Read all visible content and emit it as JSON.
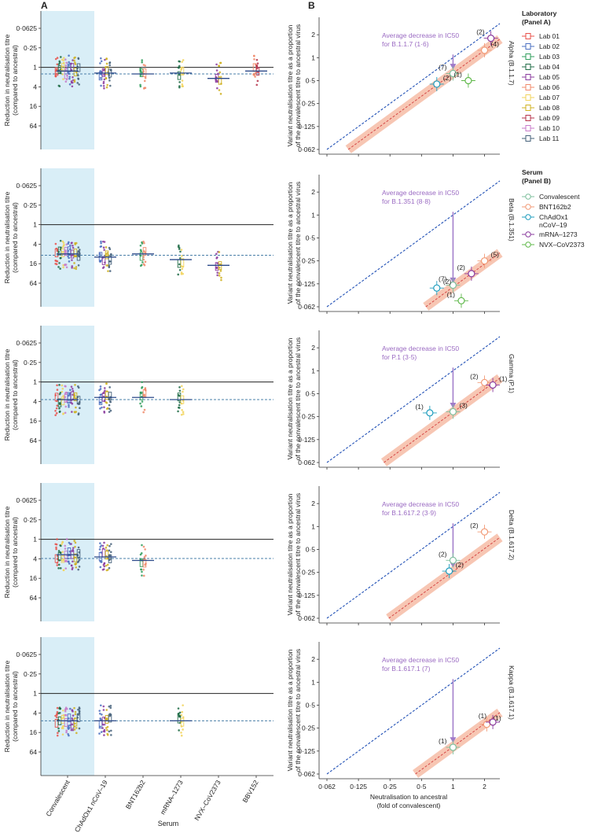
{
  "panel_labels": {
    "a": "A",
    "b": "B"
  },
  "x_axis_title_a": "Serum",
  "x_axis_title_b": "Neutralisation to ancestral\n(fold of convalescent)",
  "legend_lab": {
    "title": "Laboratory\n(Panel A)",
    "items": [
      {
        "label": "Lab 01",
        "color": "#e8504a"
      },
      {
        "label": "Lab 02",
        "color": "#4a6fc0"
      },
      {
        "label": "Lab 03",
        "color": "#2e9c5a"
      },
      {
        "label": "Lab 04",
        "color": "#1f6b45"
      },
      {
        "label": "Lab 05",
        "color": "#8a3a9e"
      },
      {
        "label": "Lab 06",
        "color": "#f08a6a"
      },
      {
        "label": "Lab 07",
        "color": "#f2d35a"
      },
      {
        "label": "Lab 08",
        "color": "#cfb01f"
      },
      {
        "label": "Lab 09",
        "color": "#b5324a"
      },
      {
        "label": "Lab 10",
        "color": "#c77ac9"
      },
      {
        "label": "Lab 11",
        "color": "#45607a"
      }
    ]
  },
  "legend_serum": {
    "title": "Serum\n(Panel B)",
    "items": [
      {
        "label": "Convalescent",
        "color": "#7dbf9c"
      },
      {
        "label": "BNT162b2",
        "color": "#f29a76"
      },
      {
        "label": "ChAdOx1\nnCoV–19",
        "color": "#1d9cbd"
      },
      {
        "label": "mRNA–1273",
        "color": "#8a3a9e"
      },
      {
        "label": "NVX–CoV2373",
        "color": "#5fb84a"
      }
    ]
  },
  "chart_data": [
    {
      "type": "strip",
      "panel": "A",
      "row": 1,
      "ylabel": "Reduction in neutralisation titre\n(compared to ancestral)",
      "y_scale": "log2-reversed",
      "yticks": [
        "0·0625",
        "0·25",
        "1",
        "4",
        "16",
        "64"
      ],
      "categories": [
        "Convalescent",
        "ChAdOx1 nCoV–19",
        "BNT162b2",
        "mRNA–1273",
        "NVX–CoV2373",
        "BBV152"
      ],
      "medians": [
        1.3,
        1.5,
        1.6,
        1.5,
        2.2,
        1.3
      ],
      "average_line": 1.6,
      "reference_line": 1
    },
    {
      "type": "strip",
      "panel": "A",
      "row": 2,
      "ylabel": "Reduction in neutralisation titre\n(compared to ancestral)",
      "y_scale": "log2-reversed",
      "yticks": [
        "0·0625",
        "0·25",
        "1",
        "4",
        "16",
        "64"
      ],
      "categories": [
        "Convalescent",
        "ChAdOx1 nCoV–19",
        "BNT162b2",
        "mRNA–1273",
        "NVX–CoV2373",
        "BBV152"
      ],
      "medians": [
        8,
        10,
        8,
        12,
        18,
        null
      ],
      "average_line": 8.8,
      "reference_line": 1
    },
    {
      "type": "strip",
      "panel": "A",
      "row": 3,
      "ylabel": "Reduction in neutralisation titre\n(compared to ancestral)",
      "y_scale": "log2-reversed",
      "yticks": [
        "0·0625",
        "0·25",
        "1",
        "4",
        "16",
        "64"
      ],
      "categories": [
        "Convalescent",
        "ChAdOx1 nCoV–19",
        "BNT162b2",
        "mRNA–1273",
        "NVX–CoV2373",
        "BBV152"
      ],
      "medians": [
        3.5,
        3,
        3,
        3.5,
        null,
        null
      ],
      "average_line": 3.5,
      "reference_line": 1
    },
    {
      "type": "strip",
      "panel": "A",
      "row": 4,
      "ylabel": "Reduction in neutralisation titre\n(compared to ancestral)",
      "y_scale": "log2-reversed",
      "yticks": [
        "0·0625",
        "0·25",
        "1",
        "4",
        "16",
        "64"
      ],
      "categories": [
        "Convalescent",
        "ChAdOx1 nCoV–19",
        "BNT162b2",
        "mRNA–1273",
        "NVX–CoV2373",
        "BBV152"
      ],
      "medians": [
        3,
        3.5,
        4.5,
        null,
        null,
        null
      ],
      "average_line": 3.9,
      "reference_line": 1
    },
    {
      "type": "strip",
      "panel": "A",
      "row": 5,
      "ylabel": "Reduction in neutralisation titre\n(compared to ancestral)",
      "y_scale": "log2-reversed",
      "yticks": [
        "0·0625",
        "0·25",
        "1",
        "4",
        "16",
        "64"
      ],
      "categories": [
        "Convalescent",
        "ChAdOx1 nCoV–19",
        "BNT162b2",
        "mRNA–1273",
        "NVX–CoV2373",
        "BBV152"
      ],
      "medians": [
        7,
        7,
        null,
        7,
        null,
        null
      ],
      "average_line": 7,
      "reference_line": 1
    },
    {
      "type": "scatter",
      "panel": "B",
      "variant": "Alpha (B.1.1.7)",
      "ylabel": "Variant neutralisation titre as a proportion\nof the convalescent titre to ancestral virus",
      "annotation": "Average decrease in IC50\nfor B.1.1.7 (1·6)",
      "average_decrease": 1.6,
      "x_scale": "log2",
      "y_scale": "log2",
      "xticks": [
        "0·062",
        "0·125",
        "0·25",
        "0·5",
        "1",
        "2"
      ],
      "yticks": [
        "2",
        "1",
        "0·5",
        "0·25",
        "0·125",
        "0·062"
      ],
      "points": [
        {
          "serum": "Convalescent",
          "x": 1.0,
          "y": 0.62,
          "n": "(7)"
        },
        {
          "serum": "ChAdOx1\nnCoV–19",
          "x": 0.7,
          "y": 0.45,
          "n": "(2)"
        },
        {
          "serum": "NVX–CoV2373",
          "x": 1.4,
          "y": 0.5,
          "n": "(1)"
        },
        {
          "serum": "BNT162b2",
          "x": 2.0,
          "y": 1.25,
          "n": "(4)"
        },
        {
          "serum": "mRNA–1273",
          "x": 2.3,
          "y": 1.8,
          "n": "(2)"
        }
      ]
    },
    {
      "type": "scatter",
      "panel": "B",
      "variant": "Beta (B.1.351)",
      "ylabel": "Variant neutralisation titre as a proportion\nof the convalescent titre to ancestral virus",
      "annotation": "Average decrease in IC50\nfor B.1.351 (8·8)",
      "average_decrease": 8.8,
      "x_scale": "log2",
      "y_scale": "log2",
      "xticks": [
        "0·062",
        "0·125",
        "0·25",
        "0·5",
        "1",
        "2"
      ],
      "yticks": [
        "2",
        "1",
        "0·5",
        "0·25",
        "0·125",
        "0·062"
      ],
      "points": [
        {
          "serum": "Convalescent",
          "x": 1.0,
          "y": 0.12,
          "n": "(7)"
        },
        {
          "serum": "ChAdOx1\nnCoV–19",
          "x": 0.7,
          "y": 0.11,
          "n": "(2)"
        },
        {
          "serum": "NVX–CoV2373",
          "x": 1.2,
          "y": 0.075,
          "n": "(1)"
        },
        {
          "serum": "BNT162b2",
          "x": 2.0,
          "y": 0.25,
          "n": "(5)"
        },
        {
          "serum": "mRNA–1273",
          "x": 1.5,
          "y": 0.17,
          "n": "(2)"
        }
      ]
    },
    {
      "type": "scatter",
      "panel": "B",
      "variant": "Gamma (P.1)",
      "ylabel": "Variant neutralisation titre as a proportion\nof the convalescent titre to ancestral virus",
      "annotation": "Average decrease in IC50\nfor P.1 (3·5)",
      "average_decrease": 3.5,
      "x_scale": "log2",
      "y_scale": "log2",
      "xticks": [
        "0·062",
        "0·125",
        "0·25",
        "0·5",
        "1",
        "2"
      ],
      "yticks": [
        "2",
        "1",
        "0·5",
        "0·25",
        "0·125",
        "0·062"
      ],
      "points": [
        {
          "serum": "ChAdOx1\nnCoV–19",
          "x": 0.6,
          "y": 0.28,
          "n": "(1)"
        },
        {
          "serum": "Convalescent",
          "x": 1.0,
          "y": 0.29,
          "n": "(3)"
        },
        {
          "serum": "BNT162b2",
          "x": 2.0,
          "y": 0.7,
          "n": "(2)"
        },
        {
          "serum": "mRNA–1273",
          "x": 2.4,
          "y": 0.65,
          "n": "(1)"
        }
      ]
    },
    {
      "type": "scatter",
      "panel": "B",
      "variant": "Delta (B.1.617.2)",
      "ylabel": "Variant neutralisation titre as a proportion\nof the convalescent titre to ancestral virus",
      "annotation": "Average decrease in IC50\nfor B.1.617.2 (3·9)",
      "average_decrease": 3.9,
      "x_scale": "log2",
      "y_scale": "log2",
      "xticks": [
        "0·062",
        "0·125",
        "0·25",
        "0·5",
        "1",
        "2"
      ],
      "yticks": [
        "2",
        "1",
        "0·5",
        "0·25",
        "0·125",
        "0·062"
      ],
      "points": [
        {
          "serum": "Convalescent",
          "x": 1.0,
          "y": 0.36,
          "n": "(2)"
        },
        {
          "serum": "ChAdOx1\nnCoV–19",
          "x": 0.92,
          "y": 0.26,
          "n": "(2)"
        },
        {
          "serum": "BNT162b2",
          "x": 2.0,
          "y": 0.85,
          "n": "(2)"
        }
      ]
    },
    {
      "type": "scatter",
      "panel": "B",
      "variant": "Kappa (B.1.617.1)",
      "ylabel": "Variant neutralisation titre as a proportion\nof the convalescent titre to ancestral virus",
      "annotation": "Average decrease in IC50\nfor B.1.617.1 (7)",
      "average_decrease": 7,
      "x_scale": "log2",
      "y_scale": "log2",
      "xticks": [
        "0·062",
        "0·125",
        "0·25",
        "0·5",
        "1",
        "2"
      ],
      "yticks": [
        "2",
        "1",
        "0·5",
        "0·25",
        "0·125",
        "0·062"
      ],
      "points": [
        {
          "serum": "Convalescent",
          "x": 1.0,
          "y": 0.14,
          "n": "(1)"
        },
        {
          "serum": "BNT162b2",
          "x": 2.1,
          "y": 0.28,
          "n": "(1)"
        },
        {
          "serum": "mRNA–1273",
          "x": 2.4,
          "y": 0.3,
          "n": "(1)"
        }
      ]
    }
  ]
}
